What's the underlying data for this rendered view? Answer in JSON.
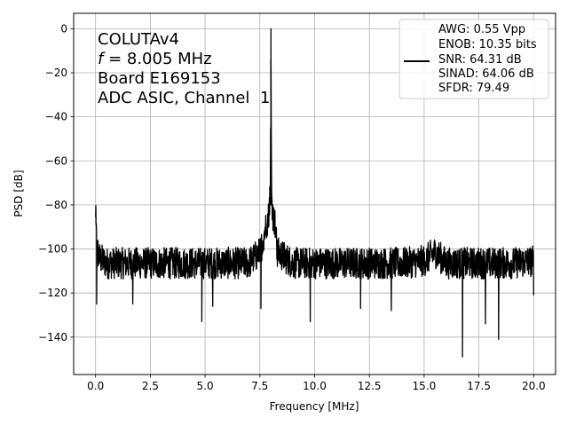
{
  "chart_data": {
    "type": "line",
    "title": "",
    "xlabel": "Frequency [MHz]",
    "ylabel": "PSD [dB]",
    "xlim": [
      -1,
      21
    ],
    "ylim": [
      -157,
      7
    ],
    "xticks": [
      0.0,
      2.5,
      5.0,
      7.5,
      10.0,
      12.5,
      15.0,
      17.5,
      20.0
    ],
    "xtick_labels": [
      "0.0",
      "2.5",
      "5.0",
      "7.5",
      "10.0",
      "12.5",
      "15.0",
      "17.5",
      "20.0"
    ],
    "yticks": [
      0,
      -20,
      -40,
      -60,
      -80,
      -100,
      -120,
      -140
    ],
    "ytick_labels": [
      "0",
      "−20",
      "−40",
      "−60",
      "−80",
      "−100",
      "−120",
      "−140"
    ],
    "grid": true,
    "annotation": {
      "line1": "COLUTAv4",
      "line2_italic": "f",
      "line2_rest": " = 8.005 MHz",
      "line3": "Board E169153",
      "line4": "ADC ASIC, Channel  1"
    },
    "legend": {
      "placement": "top-right",
      "lines": [
        "AWG: 0.55 Vpp",
        "ENOB: 10.35 bits",
        "SNR: 64.31 dB",
        "SINAD: 64.06 dB",
        "SFDR: 79.49"
      ]
    },
    "series": [
      {
        "color": "#000000",
        "x": [
          0.0,
          0.02,
          0.05,
          0.1,
          0.2,
          0.5,
          1.0,
          2.0,
          3.0,
          4.0,
          5.0,
          6.0,
          7.0,
          7.5,
          7.7,
          7.8,
          7.9,
          7.98,
          8.005,
          8.03,
          8.1,
          8.2,
          8.3,
          9.0,
          10.0,
          11.0,
          12.0,
          13.0,
          14.0,
          15.0,
          15.5,
          16.0,
          16.75,
          17.0,
          18.0,
          18.4,
          19.0,
          20.0
        ],
        "y": [
          -80,
          -88,
          -95,
          -100,
          -103,
          -105,
          -105,
          -105,
          -105,
          -105,
          -105,
          -105,
          -105,
          -100,
          -90,
          -86,
          -82,
          -70,
          0,
          -72,
          -82,
          -86,
          -100,
          -105,
          -105,
          -105,
          -105,
          -105,
          -105,
          -104,
          -100,
          -105,
          -105,
          -105,
          -105,
          -105,
          -105,
          -104
        ],
        "noise_band": [
          -112,
          -96
        ],
        "min_spikes": [
          {
            "x": 0.05,
            "y": -125
          },
          {
            "x": 1.7,
            "y": -125
          },
          {
            "x": 4.85,
            "y": -133
          },
          {
            "x": 5.35,
            "y": -126
          },
          {
            "x": 7.55,
            "y": -127
          },
          {
            "x": 9.8,
            "y": -133
          },
          {
            "x": 12.1,
            "y": -127
          },
          {
            "x": 13.5,
            "y": -128
          },
          {
            "x": 16.75,
            "y": -149
          },
          {
            "x": 17.8,
            "y": -134
          },
          {
            "x": 18.4,
            "y": -141
          },
          {
            "x": 20.0,
            "y": -121
          }
        ]
      }
    ]
  }
}
